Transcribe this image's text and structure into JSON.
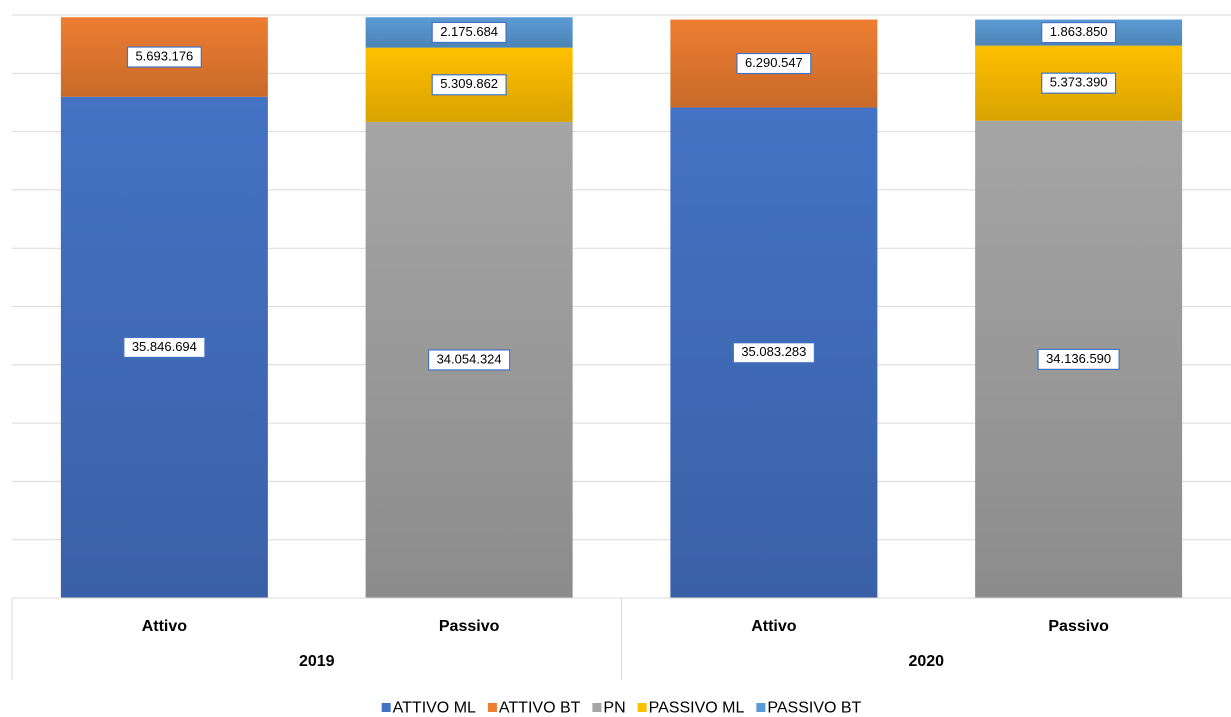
{
  "chart_data": {
    "type": "bar",
    "stacked": true,
    "categories": [
      "Attivo",
      "Passivo",
      "Attivo",
      "Passivo"
    ],
    "category_groups": [
      "2019",
      "2019",
      "2020",
      "2020"
    ],
    "series": [
      {
        "name": "ATTIVO ML",
        "color": "#4472c4",
        "values": [
          35846694,
          null,
          35083283,
          null
        ],
        "value_labels": [
          "35.846.694",
          null,
          "35.083.283",
          null
        ]
      },
      {
        "name": "ATTIVO BT",
        "color": "#ed7d31",
        "values": [
          5693176,
          null,
          6290547,
          null
        ],
        "value_labels": [
          "5.693.176",
          null,
          "6.290.547",
          null
        ]
      },
      {
        "name": "PN",
        "color": "#a5a5a5",
        "values": [
          null,
          34054324,
          null,
          34136590
        ],
        "value_labels": [
          null,
          "34.054.324",
          null,
          "34.136.590"
        ]
      },
      {
        "name": "PASSIVO ML",
        "color": "#ffc000",
        "values": [
          null,
          5309862,
          null,
          5373390
        ],
        "value_labels": [
          null,
          "5.309.862",
          null,
          "5.373.390"
        ]
      },
      {
        "name": "PASSIVO BT",
        "color": "#5b9bd5",
        "values": [
          null,
          2175684,
          null,
          1863850
        ],
        "value_labels": [
          null,
          "2.175.684",
          null,
          "1.863.850"
        ]
      }
    ],
    "ylim": [
      0,
      41700000
    ],
    "yticks": [
      0,
      4170000,
      8340000,
      12510000,
      16680000,
      20850000,
      25020000,
      29190000,
      33360000,
      37530000,
      41700000
    ],
    "grid": true,
    "legend": "bottom"
  }
}
